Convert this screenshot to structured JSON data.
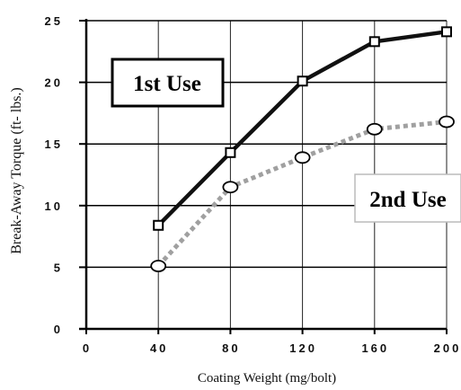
{
  "chart_data": {
    "type": "line",
    "xlabel": "Coating Weight (mg/bolt)",
    "ylabel": "Break-Away Torque (ft- lbs.)",
    "xlim": [
      0,
      200
    ],
    "ylim": [
      0,
      25
    ],
    "x_ticks": [
      0,
      40,
      80,
      120,
      160,
      200
    ],
    "y_ticks": [
      0,
      5,
      10,
      15,
      20,
      25
    ],
    "x_tick_labels": [
      "0",
      "40",
      "80",
      "120",
      "160",
      "200"
    ],
    "y_tick_labels": [
      "0",
      "5",
      "10",
      "15",
      "20",
      "25"
    ],
    "grid": true,
    "series": [
      {
        "name": "1st Use",
        "x": [
          40,
          80,
          120,
          160,
          200
        ],
        "values": [
          8.4,
          14.3,
          20.1,
          23.3,
          24.1
        ],
        "style": "solid",
        "marker": "square",
        "color": "#111111"
      },
      {
        "name": "2nd Use",
        "x": [
          40,
          80,
          120,
          160,
          200
        ],
        "values": [
          5.1,
          11.5,
          13.9,
          16.2,
          16.8
        ],
        "style": "dotted",
        "marker": "circle",
        "color": "#a0a0a0"
      }
    ]
  }
}
